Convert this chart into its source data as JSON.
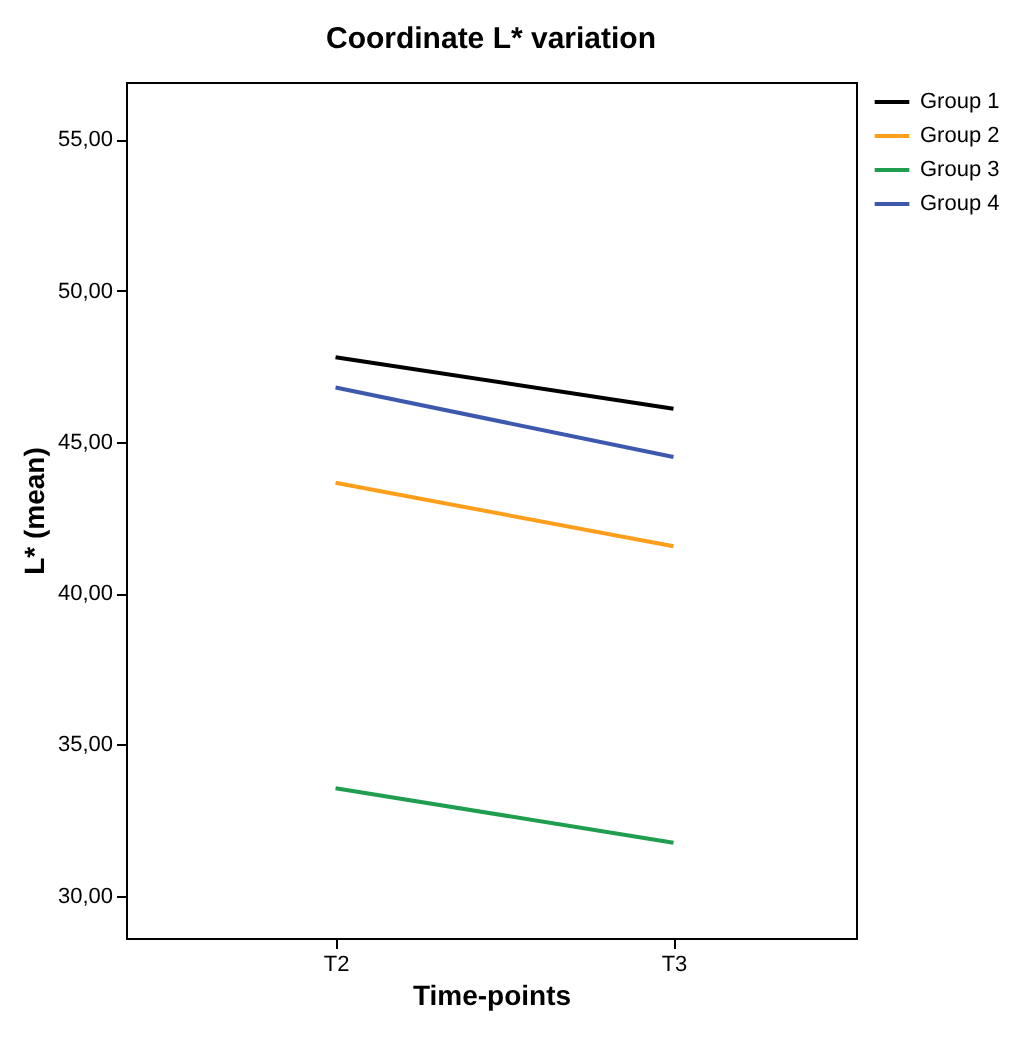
{
  "chart_data": {
    "type": "line",
    "title": "Coordinate L* variation",
    "xlabel": "Time-points",
    "ylabel": "L* (mean)",
    "categories": [
      "T2",
      "T3"
    ],
    "series": [
      {
        "name": "Group 1",
        "color": "#000000",
        "values": [
          47.8,
          46.1
        ]
      },
      {
        "name": "Group 2",
        "color": "#ff9e1a",
        "values": [
          43.65,
          41.55
        ]
      },
      {
        "name": "Group 3",
        "color": "#1f9e4f",
        "values": [
          33.55,
          31.75
        ]
      },
      {
        "name": "Group 4",
        "color": "#3d59ad",
        "values": [
          46.8,
          44.5
        ]
      }
    ],
    "ylim": [
      28.6,
      56.9
    ],
    "yticks": [
      {
        "value": 30,
        "label": "30,00"
      },
      {
        "value": 35,
        "label": "35,00"
      },
      {
        "value": 40,
        "label": "40,00"
      },
      {
        "value": 45,
        "label": "45,00"
      },
      {
        "value": 50,
        "label": "50,00"
      },
      {
        "value": 55,
        "label": "55,00"
      }
    ],
    "grid": false,
    "legend": "top right",
    "marker": "none",
    "line_style": "solid"
  }
}
